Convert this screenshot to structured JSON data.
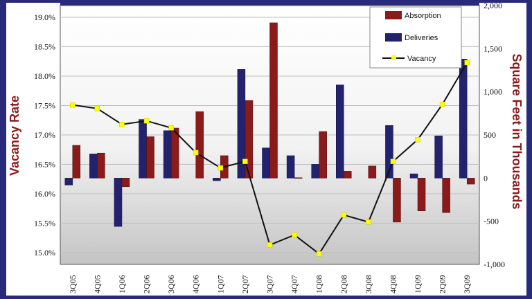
{
  "chart_data": {
    "type": "bar",
    "categories": [
      "3Q05",
      "4Q05",
      "1Q06",
      "2Q06",
      "3Q06",
      "4Q06",
      "1Q07",
      "2Q07",
      "3Q07",
      "4Q07",
      "1Q08",
      "2Q08",
      "3Q08",
      "4Q08",
      "1Q09",
      "2Q09",
      "3Q09"
    ],
    "series": [
      {
        "name": "Absorption",
        "type": "bar",
        "axis": "right",
        "color": "#8b1a1a",
        "values": [
          380,
          290,
          -100,
          480,
          580,
          770,
          260,
          900,
          1800,
          5,
          540,
          80,
          140,
          -510,
          -380,
          -400,
          -70
        ]
      },
      {
        "name": "Deliveries",
        "type": "bar",
        "axis": "right",
        "color": "#22226e",
        "values": [
          -80,
          280,
          -560,
          680,
          550,
          0,
          -30,
          1260,
          350,
          260,
          160,
          1080,
          0,
          610,
          50,
          490,
          1380
        ]
      },
      {
        "name": "Vacancy",
        "type": "line",
        "axis": "left",
        "color": "#111111",
        "marker_color": "#ffff00",
        "values": [
          17.51,
          17.45,
          17.18,
          17.24,
          17.12,
          16.7,
          16.44,
          16.55,
          15.13,
          15.3,
          14.98,
          15.64,
          15.52,
          16.55,
          16.92,
          17.52,
          18.23
        ]
      }
    ],
    "ylabel": "Vacancy Rate",
    "y2label": "Square Feet in Thousands",
    "ylim": [
      14.8,
      19.2
    ],
    "y2lim": [
      -1000,
      2000
    ],
    "yticks": [
      "19.0%",
      "18.5%",
      "18.0%",
      "17.5%",
      "17.0%",
      "16.5%",
      "16.0%",
      "15.5%",
      "15.0%"
    ],
    "ytick_values": [
      19.0,
      18.5,
      18.0,
      17.5,
      17.0,
      16.5,
      16.0,
      15.5,
      15.0
    ],
    "y2ticks": [
      "2,000",
      "1,500",
      "1,000",
      "500",
      "0",
      "-500",
      "-1,000"
    ],
    "y2tick_values": [
      2000,
      1500,
      1000,
      500,
      0,
      -500,
      -1000
    ],
    "grid": true,
    "legend": "top-right"
  }
}
